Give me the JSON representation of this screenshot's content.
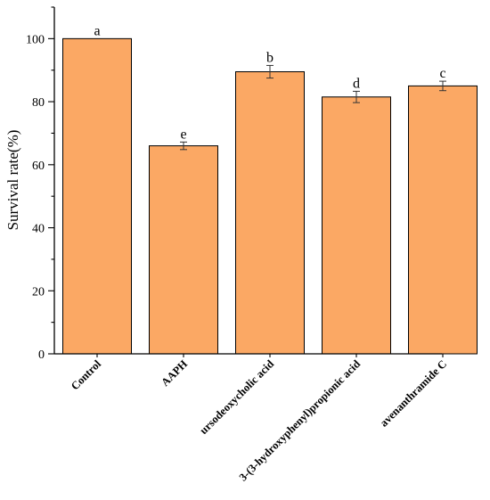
{
  "chart_data": {
    "type": "bar",
    "ylabel": "Survival rate(%)",
    "xlabel": "",
    "ylim": [
      0,
      110
    ],
    "yticks": [
      0,
      20,
      40,
      60,
      80,
      100
    ],
    "bar_color": "#FBA864",
    "categories": [
      "Control",
      "AAPH",
      "ursodeoxycholic acid",
      "3-(3-hydroxyphenyl)propionic acid",
      "avenanthramide C"
    ],
    "values": [
      100,
      66,
      89.5,
      81.5,
      85
    ],
    "errors": [
      0,
      1.2,
      2.0,
      1.8,
      1.5
    ],
    "significance_labels": [
      "a",
      "e",
      "b",
      "d",
      "c"
    ]
  }
}
